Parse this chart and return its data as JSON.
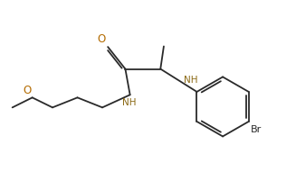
{
  "bg_color": "#ffffff",
  "line_color": "#2a2a2a",
  "o_color": "#b36b00",
  "n_color": "#8b6914",
  "br_color": "#2a2a2a",
  "figsize": [
    3.27,
    1.91
  ],
  "dpi": 100,
  "lw": 1.3,
  "fs": 7.5,
  "xlim": [
    0,
    10
  ],
  "ylim": [
    0,
    6.2
  ]
}
